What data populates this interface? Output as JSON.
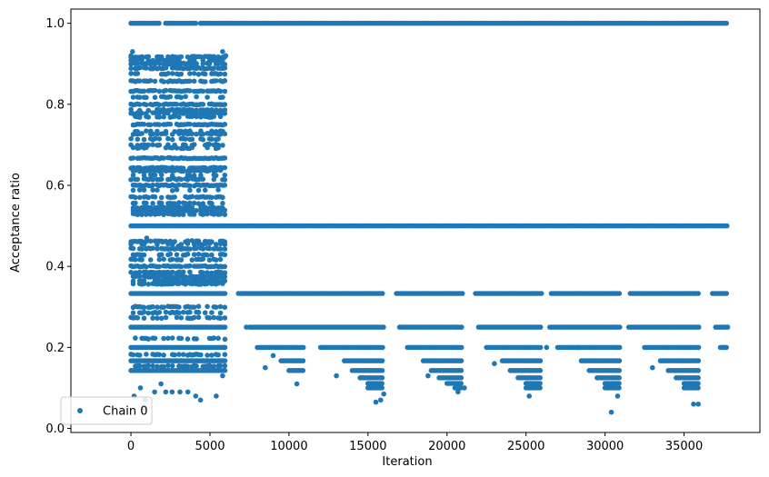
{
  "chart_data": {
    "type": "scatter",
    "xlabel": "Iteration",
    "ylabel": "Acceptance ratio",
    "xlim": [
      -3800,
      39800
    ],
    "ylim": [
      -0.01,
      1.035
    ],
    "xticks": [
      0,
      5000,
      10000,
      15000,
      20000,
      25000,
      30000,
      35000
    ],
    "xtick_labels": [
      "0",
      "5000",
      "10000",
      "15000",
      "20000",
      "25000",
      "30000",
      "35000"
    ],
    "yticks": [
      0.0,
      0.2,
      0.4,
      0.6,
      0.8,
      1.0
    ],
    "ytick_labels": [
      "0.0",
      "0.2",
      "0.4",
      "0.6",
      "0.8",
      "1.0"
    ],
    "grid": false,
    "legend": {
      "position": "lower-left",
      "entries": [
        "Chain 0"
      ]
    },
    "series": [
      {
        "name": "Chain 0",
        "color": "#1f77b4",
        "marker": "circle",
        "x_range": [
          0,
          37800
        ],
        "bands": [
          {
            "y": 1.0,
            "segments": [
              [
                0,
                1800
              ],
              [
                2200,
                4200
              ],
              [
                4400,
                37800
              ]
            ]
          },
          {
            "y": 0.5,
            "segments": [
              [
                0,
                37800
              ]
            ]
          },
          {
            "y": 0.333,
            "segments": [
              [
                0,
                6000
              ],
              [
                6800,
                16000
              ],
              [
                16800,
                21000
              ],
              [
                21800,
                26000
              ],
              [
                26600,
                31000
              ],
              [
                31600,
                36000
              ],
              [
                36800,
                37800
              ]
            ]
          },
          {
            "y": 0.25,
            "segments": [
              [
                0,
                6000
              ],
              [
                7500,
                16000
              ],
              [
                17000,
                21000
              ],
              [
                22000,
                26000
              ],
              [
                26500,
                31000
              ],
              [
                31500,
                36000
              ],
              [
                37000,
                37800
              ]
            ]
          },
          {
            "y": 0.2,
            "segments": [
              [
                0,
                6000
              ],
              [
                8000,
                11000
              ],
              [
                12000,
                16000
              ],
              [
                17500,
                21000
              ],
              [
                22500,
                26000
              ],
              [
                27000,
                31000
              ],
              [
                32500,
                36000
              ],
              [
                37300,
                37800
              ]
            ]
          },
          {
            "y": 0.167,
            "segments": [
              [
                0,
                6000
              ],
              [
                9500,
                11000
              ],
              [
                13500,
                16000
              ],
              [
                18500,
                21000
              ],
              [
                23500,
                26000
              ],
              [
                28500,
                31000
              ],
              [
                33500,
                36000
              ]
            ]
          },
          {
            "y": 0.143,
            "segments": [
              [
                0,
                6000
              ],
              [
                10000,
                11000
              ],
              [
                14000,
                16000
              ],
              [
                19000,
                21000
              ],
              [
                24000,
                26000
              ],
              [
                29000,
                31000
              ],
              [
                34000,
                36000
              ]
            ]
          },
          {
            "y": 0.125,
            "segments": [
              [
                14500,
                16000
              ],
              [
                19500,
                21000
              ],
              [
                24500,
                26000
              ],
              [
                29500,
                31000
              ],
              [
                34500,
                36000
              ]
            ]
          },
          {
            "y": 0.111,
            "segments": [
              [
                15000,
                16000
              ],
              [
                20000,
                21000
              ],
              [
                25000,
                26000
              ],
              [
                30000,
                31000
              ],
              [
                35000,
                36000
              ]
            ]
          },
          {
            "y": 0.1,
            "segments": [
              [
                15000,
                16000
              ],
              [
                20500,
                21000
              ],
              [
                25000,
                26000
              ],
              [
                30000,
                31000
              ],
              [
                35000,
                36000
              ]
            ]
          }
        ],
        "early_region": {
          "x_range": [
            0,
            6000
          ],
          "levels": [
            0.917,
            0.909,
            0.9,
            0.889,
            0.875,
            0.857,
            0.833,
            0.818,
            0.8,
            0.786,
            0.778,
            0.769,
            0.75,
            0.733,
            0.727,
            0.714,
            0.7,
            0.692,
            0.667,
            0.643,
            0.636,
            0.625,
            0.615,
            0.6,
            0.588,
            0.571,
            0.556,
            0.545,
            0.538,
            0.529,
            0.462,
            0.455,
            0.444,
            0.429,
            0.417,
            0.4,
            0.385,
            0.375,
            0.364,
            0.357,
            0.3,
            0.286,
            0.273,
            0.222,
            0.182,
            0.154
          ]
        },
        "scattered_points": [
          [
            0,
            0.92
          ],
          [
            100,
            0.93
          ],
          [
            5800,
            0.93
          ],
          [
            6000,
            0.92
          ],
          [
            200,
            0.08
          ],
          [
            600,
            0.1
          ],
          [
            900,
            0.07
          ],
          [
            1500,
            0.09
          ],
          [
            1900,
            0.11
          ],
          [
            2200,
            0.09
          ],
          [
            2600,
            0.09
          ],
          [
            3100,
            0.09
          ],
          [
            3600,
            0.09
          ],
          [
            4100,
            0.08
          ],
          [
            4400,
            0.07
          ],
          [
            5400,
            0.08
          ],
          [
            5800,
            0.13
          ],
          [
            5900,
            0.2
          ],
          [
            5950,
            0.22
          ],
          [
            9000,
            0.18
          ],
          [
            8500,
            0.15
          ],
          [
            10500,
            0.11
          ],
          [
            13000,
            0.13
          ],
          [
            15500,
            0.065
          ],
          [
            15800,
            0.07
          ],
          [
            16000,
            0.085
          ],
          [
            18800,
            0.13
          ],
          [
            20700,
            0.09
          ],
          [
            21100,
            0.1
          ],
          [
            23000,
            0.16
          ],
          [
            25200,
            0.08
          ],
          [
            26300,
            0.2
          ],
          [
            28300,
            0.2
          ],
          [
            30400,
            0.04
          ],
          [
            30800,
            0.08
          ],
          [
            33000,
            0.15
          ],
          [
            35600,
            0.06
          ],
          [
            35900,
            0.06
          ],
          [
            37500,
            0.2
          ],
          [
            7300,
            0.25
          ],
          [
            1000,
            0.47
          ],
          [
            2000,
            0.46
          ],
          [
            3000,
            0.45
          ],
          [
            800,
            0.05
          ]
        ]
      }
    ]
  }
}
